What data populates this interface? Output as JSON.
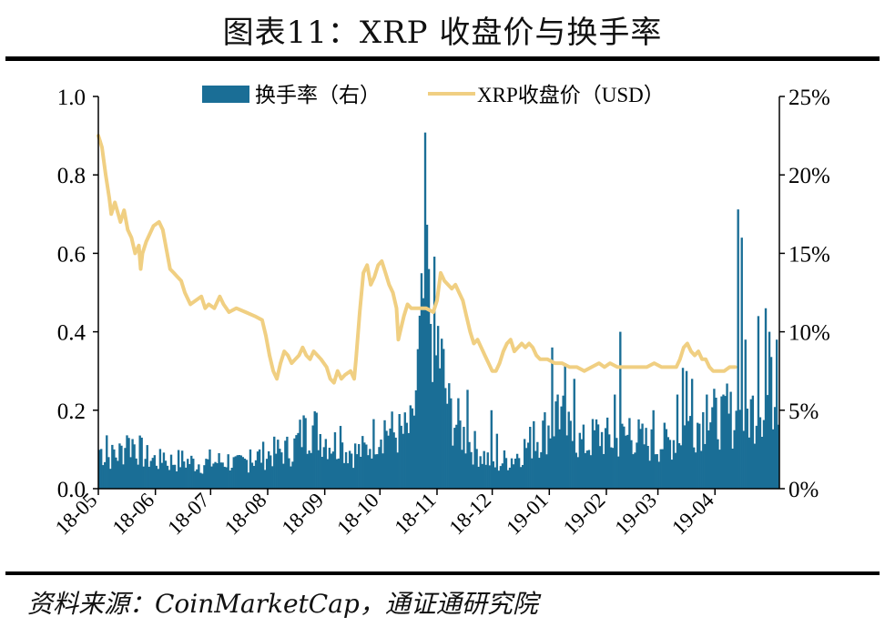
{
  "header": {
    "title": "图表11：XRP 收盘价与换手率"
  },
  "footer": {
    "source": "资料来源：CoinMarketCap，通证通研究院"
  },
  "colors": {
    "bar": "#1a6e96",
    "line": "#f0cf82",
    "axis": "#000000"
  },
  "chart_data": {
    "type": "bar+line",
    "x_ticks": [
      "18-05",
      "18-06",
      "18-07",
      "18-08",
      "18-09",
      "18-10",
      "18-11",
      "18-12",
      "19-01",
      "19-02",
      "19-03",
      "19-04"
    ],
    "left_axis": {
      "ticks": [
        "0.0",
        "0.2",
        "0.4",
        "0.6",
        "0.8",
        "1.0"
      ],
      "ylim": [
        0,
        1.0
      ],
      "unit": "USD"
    },
    "right_axis": {
      "ticks": [
        "0%",
        "5%",
        "10%",
        "15%",
        "20%",
        "25%"
      ],
      "ylim": [
        0,
        25
      ],
      "unit": "%"
    },
    "legend": [
      {
        "name": "换手率（右）",
        "kind": "bar"
      },
      {
        "name": "XRP收盘价（USD）",
        "kind": "line"
      }
    ],
    "series": [
      {
        "name": "换手率（右）",
        "type": "bar",
        "axis": "right",
        "keypoints": [
          [
            0,
            2.5
          ],
          [
            5,
            2.0
          ],
          [
            10,
            2.2
          ],
          [
            18,
            3.0
          ],
          [
            25,
            2.0
          ],
          [
            35,
            1.7
          ],
          [
            45,
            1.8
          ],
          [
            55,
            1.6
          ],
          [
            70,
            1.8
          ],
          [
            75,
            1.5
          ],
          [
            85,
            2.0
          ],
          [
            95,
            2.3
          ],
          [
            105,
            2.5
          ],
          [
            110,
            3.5
          ],
          [
            115,
            4.0
          ],
          [
            125,
            3.0
          ],
          [
            135,
            2.5
          ],
          [
            140,
            2.3
          ],
          [
            145,
            2.5
          ],
          [
            150,
            3.5
          ],
          [
            155,
            4.0
          ],
          [
            160,
            3.5
          ],
          [
            165,
            3.5
          ],
          [
            170,
            3.8
          ],
          [
            175,
            10.0
          ],
          [
            178,
            15.0
          ],
          [
            181,
            11.0
          ],
          [
            185,
            8.5
          ],
          [
            190,
            5.0
          ],
          [
            195,
            4.0
          ],
          [
            200,
            3.0
          ],
          [
            210,
            2.0
          ],
          [
            215,
            1.5
          ],
          [
            220,
            1.8
          ],
          [
            225,
            2.0
          ],
          [
            235,
            3.0
          ],
          [
            245,
            4.0
          ],
          [
            250,
            5.0
          ],
          [
            255,
            3.5
          ],
          [
            260,
            3.0
          ],
          [
            265,
            2.8
          ],
          [
            270,
            3.5
          ],
          [
            280,
            3.0
          ],
          [
            290,
            3.5
          ],
          [
            295,
            3.0
          ],
          [
            300,
            2.8
          ],
          [
            310,
            3.0
          ],
          [
            320,
            4.0
          ],
          [
            330,
            4.5
          ],
          [
            340,
            4.5
          ],
          [
            350,
            4.5
          ],
          [
            355,
            5.0
          ],
          [
            365,
            6.0
          ],
          [
            370,
            6.0
          ]
        ],
        "spikes": [
          [
            4,
            3.4
          ],
          [
            8,
            2.5
          ],
          [
            15,
            3.4
          ],
          [
            35,
            2.3
          ],
          [
            60,
            2.5
          ],
          [
            82,
            2.5
          ],
          [
            112,
            4.5
          ],
          [
            131,
            4.0
          ],
          [
            177,
            22.7
          ],
          [
            179,
            14.0
          ],
          [
            180,
            10.5
          ],
          [
            183,
            8.5
          ],
          [
            200,
            6.3
          ],
          [
            213,
            5.0
          ],
          [
            216,
            3.5
          ],
          [
            236,
            4.3
          ],
          [
            246,
            9.0
          ],
          [
            249,
            6.0
          ],
          [
            253,
            8.0
          ],
          [
            258,
            7.0
          ],
          [
            280,
            6.0
          ],
          [
            283,
            10.0
          ],
          [
            288,
            4.5
          ],
          [
            301,
            5.0
          ],
          [
            314,
            6.0
          ],
          [
            317,
            7.7
          ],
          [
            319,
            7.5
          ],
          [
            322,
            7.0
          ],
          [
            330,
            6.0
          ],
          [
            335,
            5.8
          ],
          [
            339,
            6.0
          ],
          [
            341,
            6.7
          ],
          [
            347,
            17.8
          ],
          [
            349,
            16.0
          ],
          [
            351,
            9.5
          ],
          [
            358,
            11.0
          ],
          [
            362,
            11.5
          ],
          [
            364,
            10.0
          ],
          [
            368,
            9.5
          ]
        ]
      },
      {
        "name": "XRP收盘价（USD）",
        "type": "line",
        "axis": "left",
        "points": [
          [
            0,
            0.9
          ],
          [
            2,
            0.87
          ],
          [
            4,
            0.8
          ],
          [
            6,
            0.74
          ],
          [
            7,
            0.7
          ],
          [
            9,
            0.73
          ],
          [
            12,
            0.68
          ],
          [
            14,
            0.71
          ],
          [
            16,
            0.66
          ],
          [
            18,
            0.64
          ],
          [
            20,
            0.6
          ],
          [
            22,
            0.62
          ],
          [
            23,
            0.56
          ],
          [
            24,
            0.6
          ],
          [
            26,
            0.63
          ],
          [
            30,
            0.67
          ],
          [
            33,
            0.68
          ],
          [
            35,
            0.66
          ],
          [
            37,
            0.61
          ],
          [
            39,
            0.56
          ],
          [
            41,
            0.55
          ],
          [
            43,
            0.54
          ],
          [
            45,
            0.53
          ],
          [
            47,
            0.5
          ],
          [
            50,
            0.47
          ],
          [
            53,
            0.48
          ],
          [
            56,
            0.49
          ],
          [
            58,
            0.46
          ],
          [
            60,
            0.47
          ],
          [
            63,
            0.46
          ],
          [
            66,
            0.49
          ],
          [
            68,
            0.47
          ],
          [
            71,
            0.45
          ],
          [
            75,
            0.46
          ],
          [
            80,
            0.45
          ],
          [
            85,
            0.44
          ],
          [
            89,
            0.43
          ],
          [
            91,
            0.39
          ],
          [
            93,
            0.34
          ],
          [
            95,
            0.3
          ],
          [
            97,
            0.28
          ],
          [
            99,
            0.32
          ],
          [
            101,
            0.35
          ],
          [
            103,
            0.34
          ],
          [
            105,
            0.32
          ],
          [
            107,
            0.33
          ],
          [
            109,
            0.34
          ],
          [
            111,
            0.36
          ],
          [
            113,
            0.34
          ],
          [
            115,
            0.33
          ],
          [
            117,
            0.35
          ],
          [
            119,
            0.34
          ],
          [
            121,
            0.33
          ],
          [
            124,
            0.31
          ],
          [
            126,
            0.28
          ],
          [
            128,
            0.27
          ],
          [
            130,
            0.3
          ],
          [
            132,
            0.28
          ],
          [
            134,
            0.29
          ],
          [
            137,
            0.3
          ],
          [
            139,
            0.28
          ],
          [
            140,
            0.33
          ],
          [
            142,
            0.45
          ],
          [
            144,
            0.55
          ],
          [
            146,
            0.57
          ],
          [
            148,
            0.52
          ],
          [
            150,
            0.54
          ],
          [
            152,
            0.57
          ],
          [
            154,
            0.58
          ],
          [
            156,
            0.55
          ],
          [
            158,
            0.52
          ],
          [
            160,
            0.5
          ],
          [
            162,
            0.46
          ],
          [
            163,
            0.38
          ],
          [
            164,
            0.4
          ],
          [
            166,
            0.44
          ],
          [
            168,
            0.47
          ],
          [
            170,
            0.46
          ],
          [
            174,
            0.46
          ],
          [
            178,
            0.46
          ],
          [
            182,
            0.45
          ],
          [
            184,
            0.48
          ],
          [
            186,
            0.55
          ],
          [
            188,
            0.53
          ],
          [
            190,
            0.52
          ],
          [
            192,
            0.51
          ],
          [
            194,
            0.52
          ],
          [
            196,
            0.5
          ],
          [
            198,
            0.48
          ],
          [
            200,
            0.44
          ],
          [
            202,
            0.4
          ],
          [
            204,
            0.37
          ],
          [
            206,
            0.38
          ],
          [
            208,
            0.36
          ],
          [
            210,
            0.34
          ],
          [
            212,
            0.32
          ],
          [
            214,
            0.3
          ],
          [
            216,
            0.3
          ],
          [
            218,
            0.32
          ],
          [
            220,
            0.35
          ],
          [
            222,
            0.37
          ],
          [
            224,
            0.38
          ],
          [
            226,
            0.35
          ],
          [
            228,
            0.36
          ],
          [
            230,
            0.37
          ],
          [
            232,
            0.36
          ],
          [
            234,
            0.37
          ],
          [
            236,
            0.36
          ],
          [
            238,
            0.34
          ],
          [
            240,
            0.33
          ],
          [
            244,
            0.33
          ],
          [
            248,
            0.32
          ],
          [
            252,
            0.32
          ],
          [
            256,
            0.31
          ],
          [
            260,
            0.31
          ],
          [
            264,
            0.3
          ],
          [
            268,
            0.31
          ],
          [
            272,
            0.32
          ],
          [
            275,
            0.31
          ],
          [
            278,
            0.32
          ],
          [
            282,
            0.31
          ],
          [
            286,
            0.31
          ],
          [
            290,
            0.31
          ],
          [
            294,
            0.31
          ],
          [
            298,
            0.31
          ],
          [
            302,
            0.32
          ],
          [
            306,
            0.31
          ],
          [
            310,
            0.31
          ],
          [
            314,
            0.31
          ],
          [
            316,
            0.33
          ],
          [
            318,
            0.36
          ],
          [
            320,
            0.37
          ],
          [
            322,
            0.35
          ],
          [
            324,
            0.34
          ],
          [
            326,
            0.35
          ],
          [
            328,
            0.33
          ],
          [
            330,
            0.33
          ],
          [
            332,
            0.31
          ],
          [
            334,
            0.3
          ],
          [
            336,
            0.3
          ],
          [
            340,
            0.3
          ],
          [
            343,
            0.31
          ],
          [
            346,
            0.31
          ]
        ]
      }
    ]
  }
}
